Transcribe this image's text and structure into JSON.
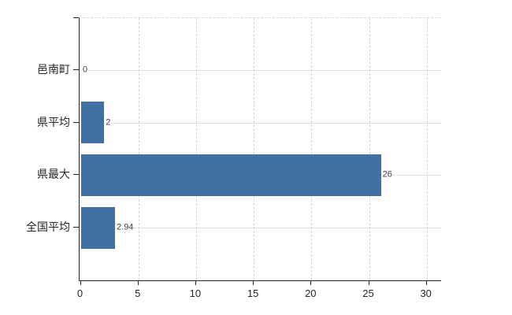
{
  "chart_data": {
    "type": "bar",
    "orientation": "horizontal",
    "title": "",
    "categories": [
      "邑南町",
      "県平均",
      "県最大",
      "全国平均"
    ],
    "values": [
      0,
      2,
      26,
      2.94
    ],
    "data_labels": [
      "0",
      "2",
      "26",
      "2.94"
    ],
    "xlabel": "",
    "ylabel": "",
    "xlim": [
      0,
      31.4
    ],
    "xticks": [
      0,
      5,
      10,
      15,
      20,
      25,
      30
    ],
    "xtick_labels": [
      "0",
      "5",
      "10",
      "15",
      "20",
      "25",
      "30"
    ],
    "legend": null,
    "grid": {
      "vertical": "dashed",
      "horizontal": "solid",
      "top_border": "dashed"
    },
    "colors": {
      "bar": "#4170a4",
      "axis": "#262626",
      "vgrid": "#d9d5d9",
      "hgrid": "#dde2dd",
      "text": "#262626",
      "data_label_text": "#404040",
      "background": "#ffffff"
    }
  }
}
